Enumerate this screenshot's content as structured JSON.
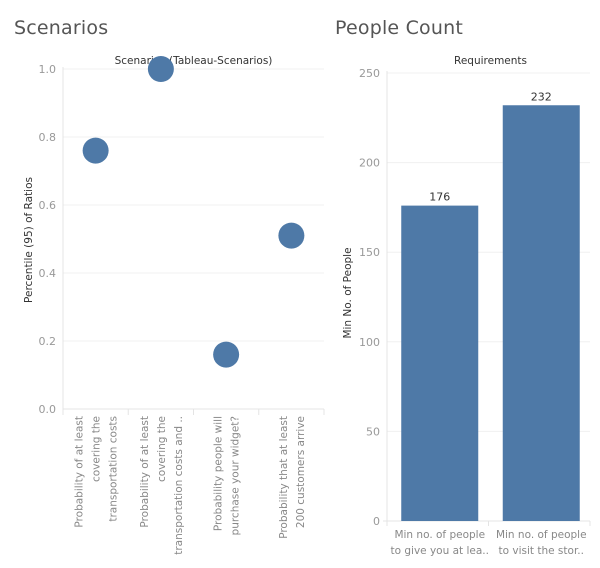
{
  "dashboard": {
    "left_title": "Scenarios",
    "right_title": "People Count"
  },
  "colors": {
    "mark": "#4e79a7",
    "grid": "#f0f0f0",
    "axis": "#e4e4e4"
  },
  "chart_data": [
    {
      "type": "scatter",
      "title": "Scenarios (Tableau-Scenarios)",
      "xlabel": "",
      "ylabel": "Percentile (95) of Ratios",
      "ylim": [
        0,
        1.0
      ],
      "yticks": [
        "0.0",
        "0.2",
        "0.4",
        "0.6",
        "0.8",
        "1.0"
      ],
      "ytick_values": [
        0,
        0.2,
        0.4,
        0.6,
        0.8,
        1.0
      ],
      "grid": true,
      "categories": [
        [
          "Probability of at least",
          "covering the",
          "transportation costs"
        ],
        [
          "Probability of at least",
          "covering the",
          "transportation costs and .."
        ],
        [
          "Probability people will",
          "purchase your widget?"
        ],
        [
          "Probability that at least",
          "200 customers arrive"
        ]
      ],
      "values": [
        0.76,
        1.0,
        0.16,
        0.51
      ]
    },
    {
      "type": "bar",
      "title": "Requirements",
      "xlabel": "",
      "ylabel": "Min No. of People",
      "ylim": [
        0,
        250
      ],
      "yticks": [
        "0",
        "50",
        "100",
        "150",
        "200",
        "250"
      ],
      "ytick_values": [
        0,
        50,
        100,
        150,
        200,
        250
      ],
      "grid": true,
      "categories": [
        [
          "Min no. of people",
          "to give you at lea.."
        ],
        [
          "Min no. of people",
          "to visit the stor.."
        ]
      ],
      "values": [
        176,
        232
      ],
      "data_labels": [
        "176",
        "232"
      ]
    }
  ]
}
